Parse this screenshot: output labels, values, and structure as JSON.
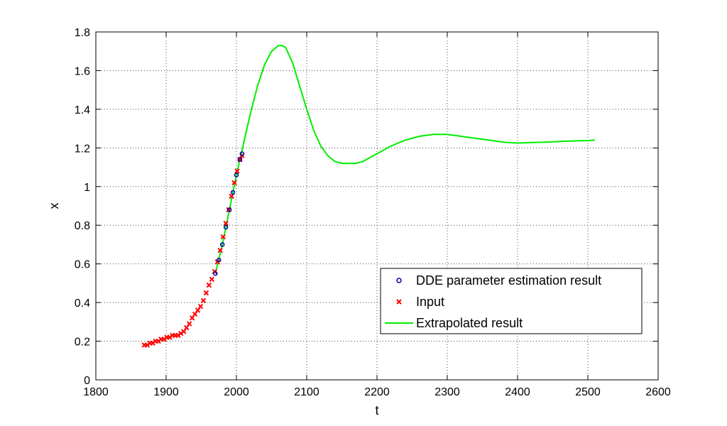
{
  "chart_data": {
    "type": "line",
    "title": "",
    "xlabel": "t",
    "ylabel": "x",
    "xlim": [
      1800,
      2600
    ],
    "ylim": [
      0,
      1.8
    ],
    "x_ticks": [
      1800,
      1900,
      2000,
      2100,
      2200,
      2300,
      2400,
      2500,
      2600
    ],
    "y_ticks": [
      0,
      0.2,
      0.4,
      0.6,
      0.8,
      1,
      1.2,
      1.4,
      1.6,
      1.8
    ],
    "grid": true,
    "legend_position": "lower-right",
    "series": [
      {
        "name": "DDE parameter estimation result",
        "style": "circle-markers",
        "color": "#0000aa",
        "x": [
          1970,
          1975,
          1980,
          1985,
          1990,
          1995,
          2000,
          2005,
          2008
        ],
        "y": [
          0.55,
          0.62,
          0.7,
          0.79,
          0.88,
          0.97,
          1.06,
          1.14,
          1.17
        ]
      },
      {
        "name": "Input",
        "style": "x-markers",
        "color": "#ff0000",
        "x": [
          1869,
          1873,
          1877,
          1881,
          1885,
          1889,
          1893,
          1897,
          1901,
          1905,
          1909,
          1913,
          1917,
          1921,
          1925,
          1929,
          1933,
          1937,
          1941,
          1945,
          1949,
          1953,
          1957,
          1961,
          1965,
          1969,
          1973,
          1977,
          1981,
          1985,
          1989,
          1993,
          1997,
          2001,
          2005,
          2008
        ],
        "y": [
          0.18,
          0.18,
          0.19,
          0.19,
          0.2,
          0.2,
          0.21,
          0.21,
          0.22,
          0.22,
          0.23,
          0.23,
          0.23,
          0.24,
          0.25,
          0.27,
          0.29,
          0.32,
          0.34,
          0.36,
          0.38,
          0.41,
          0.45,
          0.49,
          0.52,
          0.56,
          0.61,
          0.67,
          0.74,
          0.81,
          0.88,
          0.95,
          1.02,
          1.08,
          1.14,
          1.16
        ]
      },
      {
        "name": "Extrapolated result",
        "style": "line",
        "color": "#00ee00",
        "x": [
          1970,
          1980,
          1990,
          2000,
          2010,
          2020,
          2030,
          2040,
          2050,
          2060,
          2065,
          2070,
          2080,
          2090,
          2100,
          2110,
          2120,
          2130,
          2140,
          2150,
          2160,
          2170,
          2180,
          2190,
          2200,
          2220,
          2240,
          2260,
          2280,
          2300,
          2320,
          2340,
          2360,
          2380,
          2400,
          2420,
          2440,
          2460,
          2480,
          2500,
          2510
        ],
        "y": [
          0.55,
          0.7,
          0.88,
          1.06,
          1.22,
          1.38,
          1.52,
          1.63,
          1.7,
          1.73,
          1.73,
          1.72,
          1.64,
          1.52,
          1.4,
          1.29,
          1.21,
          1.16,
          1.13,
          1.12,
          1.12,
          1.12,
          1.13,
          1.15,
          1.17,
          1.21,
          1.24,
          1.26,
          1.27,
          1.27,
          1.26,
          1.25,
          1.24,
          1.23,
          1.225,
          1.228,
          1.23,
          1.233,
          1.236,
          1.238,
          1.24
        ]
      }
    ]
  }
}
